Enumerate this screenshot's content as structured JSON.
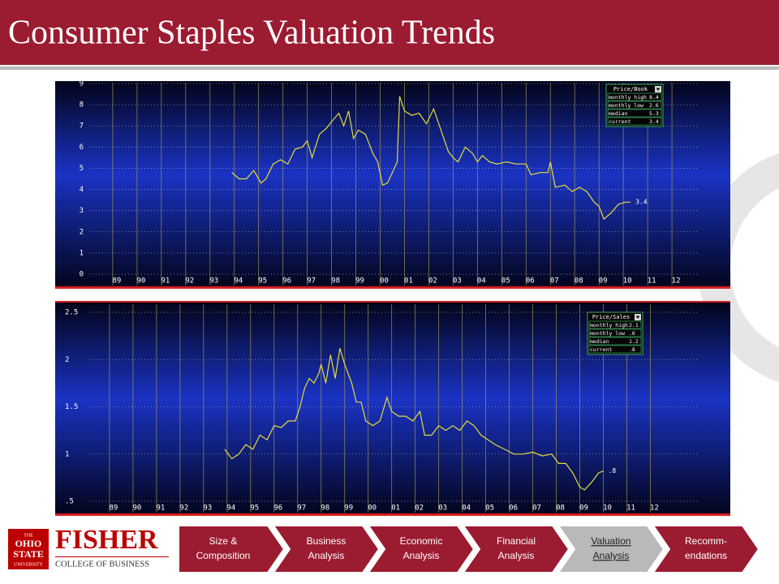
{
  "header": {
    "title": "Consumer Staples Valuation Trends"
  },
  "chart_data": [
    {
      "type": "line",
      "series": [
        {
          "name": "Price/Book",
          "color": "#e6dc3a",
          "x": [
            1993.9,
            1994.2,
            1994.5,
            1994.8,
            1995.1,
            1995.3,
            1995.6,
            1995.9,
            1996.2,
            1996.5,
            1996.8,
            1997.0,
            1997.2,
            1997.5,
            1997.8,
            1998.0,
            1998.3,
            1998.5,
            1998.7,
            1998.9,
            1999.1,
            1999.4,
            1999.7,
            1999.9,
            2000.1,
            2000.3,
            2000.5,
            2000.7,
            2000.8,
            2001.0,
            2001.3,
            2001.6,
            2001.9,
            2002.2,
            2002.5,
            2002.8,
            2003.0,
            2003.2,
            2003.5,
            2003.8,
            2004.0,
            2004.2,
            2004.5,
            2004.8,
            2005.2,
            2005.6,
            2006.0,
            2006.2,
            2006.6,
            2006.9,
            2007.0,
            2007.2,
            2007.6,
            2007.9,
            2008.2,
            2008.5,
            2008.8,
            2009.0,
            2009.2,
            2009.5,
            2009.8,
            2010.1,
            2010.3
          ],
          "values": [
            4.8,
            4.5,
            4.5,
            4.9,
            4.3,
            4.5,
            5.2,
            5.4,
            5.2,
            5.9,
            6.0,
            6.3,
            5.5,
            6.6,
            6.9,
            7.2,
            7.6,
            7.0,
            7.7,
            6.4,
            6.8,
            6.6,
            5.7,
            5.3,
            4.2,
            4.3,
            4.8,
            5.3,
            8.4,
            7.7,
            7.5,
            7.6,
            7.1,
            7.8,
            6.8,
            5.8,
            5.5,
            5.3,
            6.0,
            5.7,
            5.3,
            5.6,
            5.3,
            5.2,
            5.3,
            5.2,
            5.2,
            4.7,
            4.8,
            4.8,
            5.3,
            4.1,
            4.2,
            3.9,
            4.1,
            3.9,
            3.4,
            3.2,
            2.6,
            2.9,
            3.3,
            3.4,
            3.4
          ]
        }
      ],
      "xlim": [
        1986.7,
        2014.4
      ],
      "xticks": [
        {
          "value": 1989,
          "label": "89"
        },
        {
          "value": 1990,
          "label": "90"
        },
        {
          "value": 1991,
          "label": "91"
        },
        {
          "value": 1992,
          "label": "92"
        },
        {
          "value": 1993,
          "label": "93"
        },
        {
          "value": 1994,
          "label": "94"
        },
        {
          "value": 1995,
          "label": "95"
        },
        {
          "value": 1996,
          "label": "96"
        },
        {
          "value": 1997,
          "label": "97"
        },
        {
          "value": 1998,
          "label": "98"
        },
        {
          "value": 1999,
          "label": "99"
        },
        {
          "value": 2000,
          "label": "00"
        },
        {
          "value": 2001,
          "label": "01"
        },
        {
          "value": 2002,
          "label": "02"
        },
        {
          "value": 2003,
          "label": "03"
        },
        {
          "value": 2004,
          "label": "04"
        },
        {
          "value": 2005,
          "label": "05"
        },
        {
          "value": 2006,
          "label": "06"
        },
        {
          "value": 2007,
          "label": "07"
        },
        {
          "value": 2008,
          "label": "08"
        },
        {
          "value": 2009,
          "label": "09"
        },
        {
          "value": 2010,
          "label": "10"
        },
        {
          "value": 2011,
          "label": "11"
        },
        {
          "value": 2012,
          "label": "12"
        }
      ],
      "ylim": [
        0,
        9
      ],
      "yticks": [
        0,
        1,
        2,
        3,
        4,
        5,
        6,
        7,
        8,
        9
      ],
      "grid": true,
      "end_label": "3.4",
      "stats": [
        [
          "monthly high",
          "8.4"
        ],
        [
          "monthly low",
          "2.6"
        ],
        [
          "median",
          "5.3"
        ],
        [
          "current",
          "3.4"
        ]
      ]
    },
    {
      "type": "line",
      "series": [
        {
          "name": "Price/Sales",
          "color": "#e6dc3a",
          "x": [
            1993.9,
            1994.2,
            1994.5,
            1994.8,
            1995.1,
            1995.4,
            1995.7,
            1996.0,
            1996.3,
            1996.6,
            1996.9,
            1997.1,
            1997.3,
            1997.5,
            1997.7,
            1997.9,
            1998.0,
            1998.2,
            1998.4,
            1998.6,
            1998.8,
            1999.0,
            1999.3,
            1999.5,
            1999.7,
            1999.9,
            2000.2,
            2000.5,
            2000.8,
            2001.0,
            2001.3,
            2001.6,
            2001.9,
            2002.2,
            2002.4,
            2002.7,
            2003.0,
            2003.3,
            2003.6,
            2003.9,
            2004.2,
            2004.5,
            2004.8,
            2005.1,
            2005.4,
            2005.8,
            2006.2,
            2006.6,
            2007.0,
            2007.4,
            2007.8,
            2008.1,
            2008.4,
            2008.7,
            2009.0,
            2009.2,
            2009.5,
            2009.8,
            2010.0
          ],
          "values": [
            1.05,
            0.95,
            1.0,
            1.1,
            1.05,
            1.2,
            1.15,
            1.3,
            1.28,
            1.35,
            1.35,
            1.5,
            1.7,
            1.8,
            1.75,
            1.85,
            1.95,
            1.75,
            2.05,
            1.8,
            2.12,
            1.95,
            1.75,
            1.55,
            1.55,
            1.35,
            1.3,
            1.35,
            1.6,
            1.45,
            1.4,
            1.4,
            1.35,
            1.45,
            1.2,
            1.2,
            1.3,
            1.25,
            1.3,
            1.25,
            1.35,
            1.3,
            1.2,
            1.15,
            1.1,
            1.05,
            1.0,
            1.0,
            1.02,
            0.98,
            1.0,
            0.9,
            0.9,
            0.8,
            0.65,
            0.62,
            0.7,
            0.8,
            0.82
          ]
        }
      ],
      "xlim": [
        1986.76,
        2015.4
      ],
      "xticks": [
        {
          "value": 1989,
          "label": "89"
        },
        {
          "value": 1990,
          "label": "90"
        },
        {
          "value": 1991,
          "label": "91"
        },
        {
          "value": 1992,
          "label": "92"
        },
        {
          "value": 1993,
          "label": "93"
        },
        {
          "value": 1994,
          "label": "94"
        },
        {
          "value": 1995,
          "label": "95"
        },
        {
          "value": 1996,
          "label": "96"
        },
        {
          "value": 1997,
          "label": "97"
        },
        {
          "value": 1998,
          "label": "98"
        },
        {
          "value": 1999,
          "label": "99"
        },
        {
          "value": 2000,
          "label": "00"
        },
        {
          "value": 2001,
          "label": "01"
        },
        {
          "value": 2002,
          "label": "02"
        },
        {
          "value": 2003,
          "label": "03"
        },
        {
          "value": 2004,
          "label": "04"
        },
        {
          "value": 2005,
          "label": "05"
        },
        {
          "value": 2006,
          "label": "06"
        },
        {
          "value": 2007,
          "label": "07"
        },
        {
          "value": 2008,
          "label": "08"
        },
        {
          "value": 2009,
          "label": "09"
        },
        {
          "value": 2010,
          "label": "10"
        },
        {
          "value": 2011,
          "label": "11"
        },
        {
          "value": 2012,
          "label": "12"
        }
      ],
      "ylim": [
        0.5,
        2.5
      ],
      "yticks": [
        {
          "value": 0.5,
          "label": ".5"
        },
        1,
        1.5,
        2,
        2.5
      ],
      "grid": true,
      "end_label": ".8",
      "stats": [
        [
          "monthly high",
          "2.1"
        ],
        [
          "monthly low",
          ".6"
        ],
        [
          "median",
          "1.2"
        ],
        [
          "current",
          ".8"
        ]
      ]
    }
  ],
  "footer": {
    "logo_lines": [
      "THE",
      "OHIO",
      "STATE",
      "UNIVERSITY"
    ],
    "school": "FISHER",
    "college": "COLLEGE OF BUSINESS"
  },
  "nav": {
    "items": [
      {
        "lines": [
          "Size &",
          "Composition"
        ],
        "active": false
      },
      {
        "lines": [
          "Business",
          "Analysis"
        ],
        "active": false
      },
      {
        "lines": [
          "Economic",
          "Analysis"
        ],
        "active": false
      },
      {
        "lines": [
          "Financial",
          "Analysis"
        ],
        "active": false
      },
      {
        "lines": [
          "Valuation",
          "Analysis"
        ],
        "active": true
      },
      {
        "lines": [
          "Recomm-",
          "endations"
        ],
        "active": false
      }
    ]
  }
}
